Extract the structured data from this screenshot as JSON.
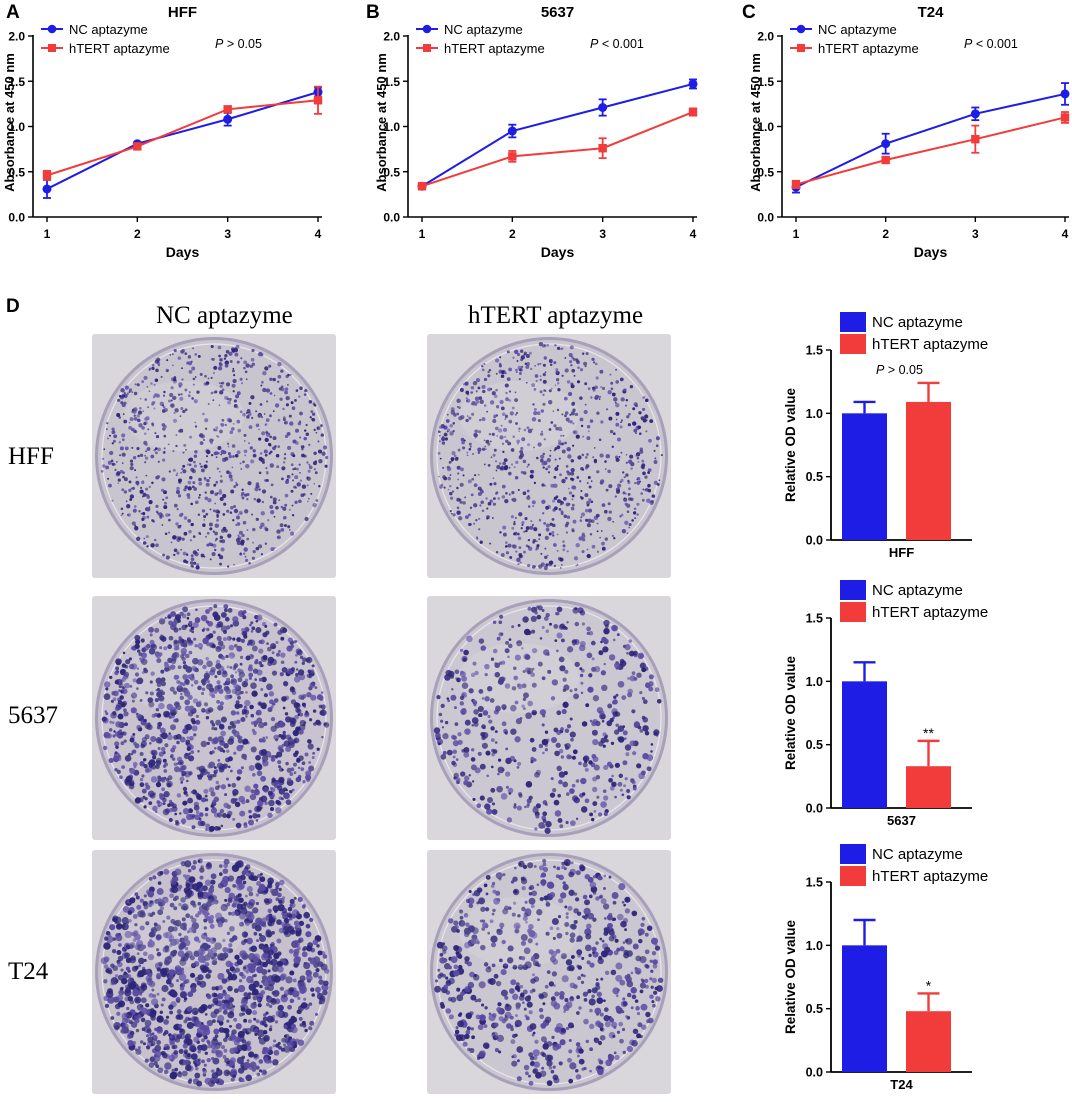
{
  "panels": {
    "A": "A",
    "B": "B",
    "C": "C",
    "D": "D"
  },
  "colors": {
    "nc": "#1d1de6",
    "ht": "#f23c3c"
  },
  "line_legend": {
    "nc": "NC aptazyme",
    "ht": "hTERT aptazyme"
  },
  "colony": {
    "col_titles": [
      "NC aptazyme",
      "hTERT aptazyme"
    ],
    "row_labels": [
      "HFF",
      "5637",
      "T24"
    ]
  },
  "chart_data": [
    {
      "id": "A",
      "type": "line",
      "title": "HFF",
      "xlabel": "Days",
      "ylabel": "Absorbance at 450 nm",
      "x": [
        1,
        2,
        3,
        4
      ],
      "xticks": [
        "1",
        "2",
        "3",
        "4"
      ],
      "ylim": [
        0,
        2.0
      ],
      "yticks": [
        "0.0",
        "0.5",
        "1.0",
        "1.5",
        "2.0"
      ],
      "annotation": {
        "p": "P",
        "rest": " > 0.05"
      },
      "series": [
        {
          "name": "NC aptazyme",
          "values": [
            0.31,
            0.81,
            1.08,
            1.38
          ],
          "err": [
            0.1,
            0.02,
            0.07,
            0.05
          ]
        },
        {
          "name": "hTERT aptazyme",
          "values": [
            0.46,
            0.78,
            1.19,
            1.29
          ],
          "err": [
            0.05,
            0.03,
            0.03,
            0.15
          ]
        }
      ]
    },
    {
      "id": "B",
      "type": "line",
      "title": "5637",
      "xlabel": "Days",
      "ylabel": "Absorbance at 450 nm",
      "x": [
        1,
        2,
        3,
        4
      ],
      "xticks": [
        "1",
        "2",
        "3",
        "4"
      ],
      "ylim": [
        0,
        2.0
      ],
      "yticks": [
        "0.0",
        "0.5",
        "1.0",
        "1.5",
        "2.0"
      ],
      "annotation": {
        "p": "P",
        "rest": " < 0.001"
      },
      "series": [
        {
          "name": "NC aptazyme",
          "values": [
            0.34,
            0.95,
            1.21,
            1.47
          ],
          "err": [
            0.03,
            0.07,
            0.09,
            0.05
          ]
        },
        {
          "name": "hTERT aptazyme",
          "values": [
            0.34,
            0.67,
            0.76,
            1.16
          ],
          "err": [
            0.03,
            0.06,
            0.11,
            0.04
          ]
        }
      ]
    },
    {
      "id": "C",
      "type": "line",
      "title": "T24",
      "xlabel": "Days",
      "ylabel": "Absorbance at 450 nm",
      "x": [
        1,
        2,
        3,
        4
      ],
      "xticks": [
        "1",
        "2",
        "3",
        "4"
      ],
      "ylim": [
        0,
        2.0
      ],
      "yticks": [
        "0.0",
        "0.5",
        "1.0",
        "1.5",
        "2.0"
      ],
      "annotation": {
        "p": "P",
        "rest": " < 0.001"
      },
      "series": [
        {
          "name": "NC aptazyme",
          "values": [
            0.33,
            0.81,
            1.14,
            1.36
          ],
          "err": [
            0.06,
            0.11,
            0.07,
            0.12
          ]
        },
        {
          "name": "hTERT aptazyme",
          "values": [
            0.36,
            0.63,
            0.86,
            1.1
          ],
          "err": [
            0.04,
            0.03,
            0.15,
            0.06
          ]
        }
      ]
    },
    {
      "id": "D-HFF",
      "type": "bar",
      "xlabel": "HFF",
      "ylabel": "Relative OD value",
      "ylim": [
        0,
        1.5
      ],
      "yticks": [
        "0.0",
        "0.5",
        "1.0",
        "1.5"
      ],
      "categories": [
        "NC aptazyme",
        "hTERT aptazyme"
      ],
      "values": [
        1.0,
        1.09
      ],
      "err": [
        0.09,
        0.15
      ],
      "sig": [
        "",
        ""
      ],
      "annotation": {
        "p": "P",
        "rest": " > 0.05"
      }
    },
    {
      "id": "D-5637",
      "type": "bar",
      "xlabel": "5637",
      "ylabel": "Relative OD value",
      "ylim": [
        0,
        1.5
      ],
      "yticks": [
        "0.0",
        "0.5",
        "1.0",
        "1.5"
      ],
      "categories": [
        "NC aptazyme",
        "hTERT aptazyme"
      ],
      "values": [
        1.0,
        0.33
      ],
      "err": [
        0.15,
        0.2
      ],
      "sig": [
        "",
        "**"
      ]
    },
    {
      "id": "D-T24",
      "type": "bar",
      "xlabel": "T24",
      "ylabel": "Relative OD value",
      "ylim": [
        0,
        1.5
      ],
      "yticks": [
        "0.0",
        "0.5",
        "1.0",
        "1.5"
      ],
      "categories": [
        "NC aptazyme",
        "hTERT aptazyme"
      ],
      "values": [
        1.0,
        0.48
      ],
      "err": [
        0.2,
        0.14
      ],
      "sig": [
        "",
        "*"
      ]
    }
  ]
}
